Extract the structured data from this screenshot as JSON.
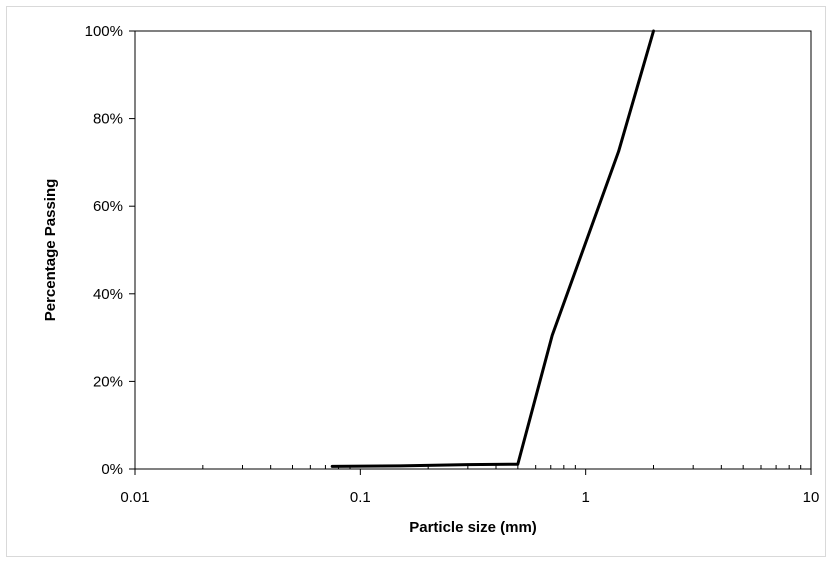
{
  "chart_data": {
    "type": "line",
    "title": "",
    "xlabel": "Particle size (mm)",
    "ylabel": "Percentage Passing",
    "x_scale": "log",
    "xlim": [
      0.01,
      10
    ],
    "ylim": [
      0,
      100
    ],
    "x_tick_labels": [
      "0.01",
      "0.1",
      "1",
      "10"
    ],
    "x_ticks": [
      0.01,
      0.1,
      1,
      10
    ],
    "y_tick_labels": [
      "0%",
      "20%",
      "40%",
      "60%",
      "80%",
      "100%"
    ],
    "y_ticks": [
      0,
      20,
      40,
      60,
      80,
      100
    ],
    "grid": false,
    "legend": "none",
    "series": [
      {
        "color": "#000000",
        "x": [
          0.075,
          0.15,
          0.3,
          0.5,
          0.71,
          1.4,
          2.0
        ],
        "y": [
          0.6,
          0.7,
          1.0,
          1.1,
          30.5,
          72.5,
          100
        ]
      }
    ]
  }
}
